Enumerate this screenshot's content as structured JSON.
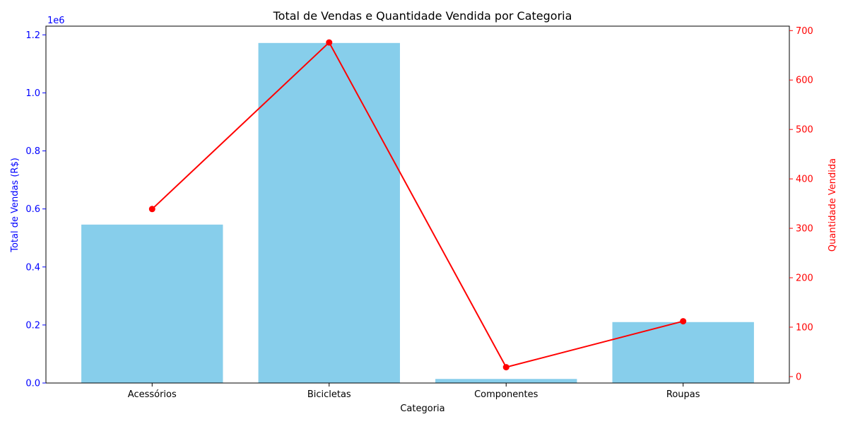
{
  "chart_data": {
    "type": "bar",
    "title": "Total de Vendas e Quantidade Vendida por Categoria",
    "xlabel": "Categoria",
    "categories": [
      "Acessórios",
      "Bicicletas",
      "Componentes",
      "Roupas"
    ],
    "y_left": {
      "label": "Total de Vendas (R$)",
      "offset_text": "1e6",
      "range": [
        0,
        1.23
      ],
      "ticks": [
        "0.0",
        "0.2",
        "0.4",
        "0.6",
        "0.8",
        "1.0",
        "1.2"
      ],
      "color": "#0000ff"
    },
    "y_right": {
      "label": "Quantidade Vendida",
      "range": [
        -13,
        709
      ],
      "ticks": [
        "0",
        "100",
        "200",
        "300",
        "400",
        "500",
        "600",
        "700"
      ],
      "color": "#ff0000"
    },
    "series": [
      {
        "type": "bar",
        "axis": "left",
        "color": "#87ceeb",
        "values": [
          546000,
          1172000,
          14000,
          210000
        ]
      },
      {
        "type": "line",
        "axis": "right",
        "color": "#ff0000",
        "marker": "circle",
        "values": [
          339,
          676,
          19,
          112
        ]
      }
    ],
    "grid": false
  }
}
